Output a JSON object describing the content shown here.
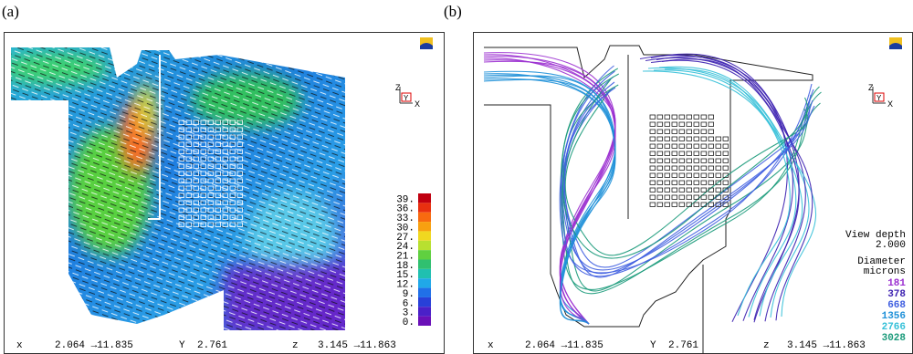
{
  "panels": [
    {
      "label": "(a)",
      "colorbar": [
        "39.",
        "36.",
        "33.",
        "30.",
        "27.",
        "24.",
        "21.",
        "18.",
        "15.",
        "12.",
        "9.",
        "6.",
        "3.",
        "0."
      ],
      "axes": {
        "z": "Z",
        "y": "Y",
        "x": "X"
      },
      "footer": {
        "x_label": "x",
        "x_range": "2.064 →11.835",
        "y_label": "Y",
        "y_value": "2.761",
        "z_label": "z",
        "z_range": "3.145 →11.863"
      }
    },
    {
      "label": "(b)",
      "axes": {
        "z": "Z",
        "y": "Y",
        "x": "X"
      },
      "legend": {
        "depth_title": "View depth",
        "depth": "2.000",
        "diameter_title": "Diameter",
        "units": "microns",
        "items": [
          {
            "value": "181",
            "color": "#9b30d0"
          },
          {
            "value": "378",
            "color": "#3b1fb0"
          },
          {
            "value": "668",
            "color": "#3f5ee0"
          },
          {
            "value": "1356",
            "color": "#1e90d8"
          },
          {
            "value": "2766",
            "color": "#35c0d8"
          },
          {
            "value": "3028",
            "color": "#1a9a7a"
          }
        ]
      },
      "footer": {
        "x_label": "x",
        "x_range": "2.064 →11.835",
        "y_label": "Y",
        "y_value": "2.761",
        "z_label": "z",
        "z_range": "3.145 →11.863"
      }
    }
  ]
}
